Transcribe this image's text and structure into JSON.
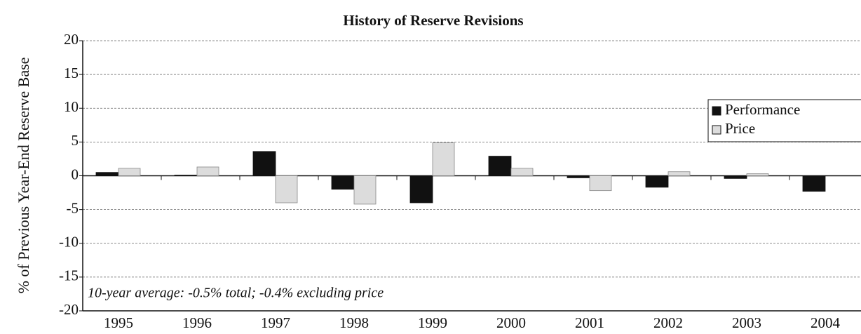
{
  "chart_data": {
    "type": "bar",
    "title": "History of Reserve Revisions",
    "y_label": "% of Previous Year-End Reserve Base",
    "annotation": "10-year average: -0.5% total; -0.4% excluding price",
    "categories": [
      "1995",
      "1996",
      "1997",
      "1998",
      "1999",
      "2000",
      "2001",
      "2002",
      "2003",
      "2004"
    ],
    "series": [
      {
        "name": "Performance",
        "color": "#111111",
        "values": [
          0.5,
          0.1,
          3.6,
          -2.0,
          -4.0,
          2.9,
          -0.3,
          -1.7,
          -0.4,
          -2.3
        ]
      },
      {
        "name": "Price",
        "color": "#dcdcdc",
        "values": [
          1.1,
          1.3,
          -4.0,
          -4.2,
          4.9,
          1.1,
          -2.2,
          0.6,
          0.3,
          0
        ]
      }
    ],
    "ylim": [
      -20,
      20
    ],
    "yticks": [
      20,
      15,
      10,
      5,
      0,
      -5,
      -10,
      -15,
      -20
    ],
    "grid": true,
    "legend": "upper right"
  }
}
